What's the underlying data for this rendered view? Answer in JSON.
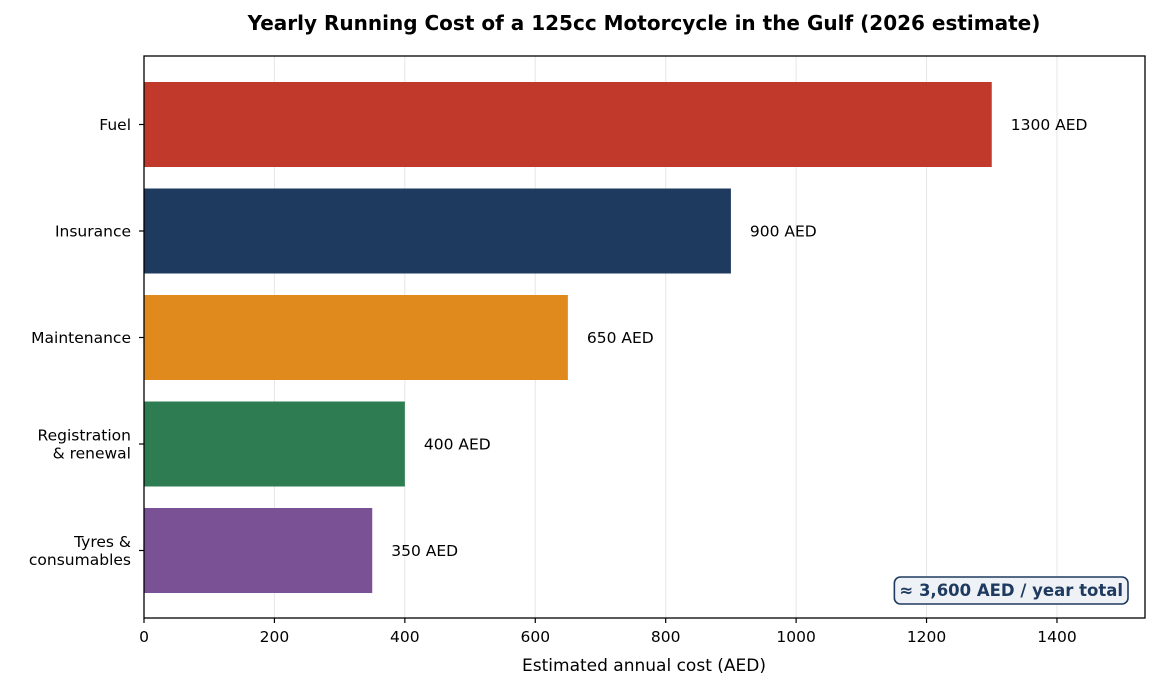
{
  "chart_data": {
    "type": "bar",
    "orientation": "horizontal",
    "title": "Yearly Running Cost of a 125cc Motorcycle in the Gulf (2026 estimate)",
    "xlabel": "Estimated annual cost (AED)",
    "ylabel": "",
    "categories": [
      [
        "Fuel"
      ],
      [
        "Insurance"
      ],
      [
        "Maintenance"
      ],
      [
        "Registration",
        "& renewal"
      ],
      [
        "Tyres &",
        "consumables"
      ]
    ],
    "values": [
      1300,
      900,
      650,
      400,
      350
    ],
    "value_labels": [
      "1300 AED",
      "900 AED",
      "650 AED",
      "400 AED",
      "350 AED"
    ],
    "colors": [
      "#c0392b",
      "#1f3a5f",
      "#e08a1e",
      "#2e7d52",
      "#7a5195"
    ],
    "xlim": [
      0,
      1535
    ],
    "xticks": [
      0,
      200,
      400,
      600,
      800,
      1000,
      1200,
      1400
    ],
    "grid": "vertical",
    "annotation": {
      "text": "≈ 3,600 AED / year total",
      "placement": "bottom-right",
      "text_color": "#1f3a5f",
      "background": "#eef2f7"
    }
  }
}
